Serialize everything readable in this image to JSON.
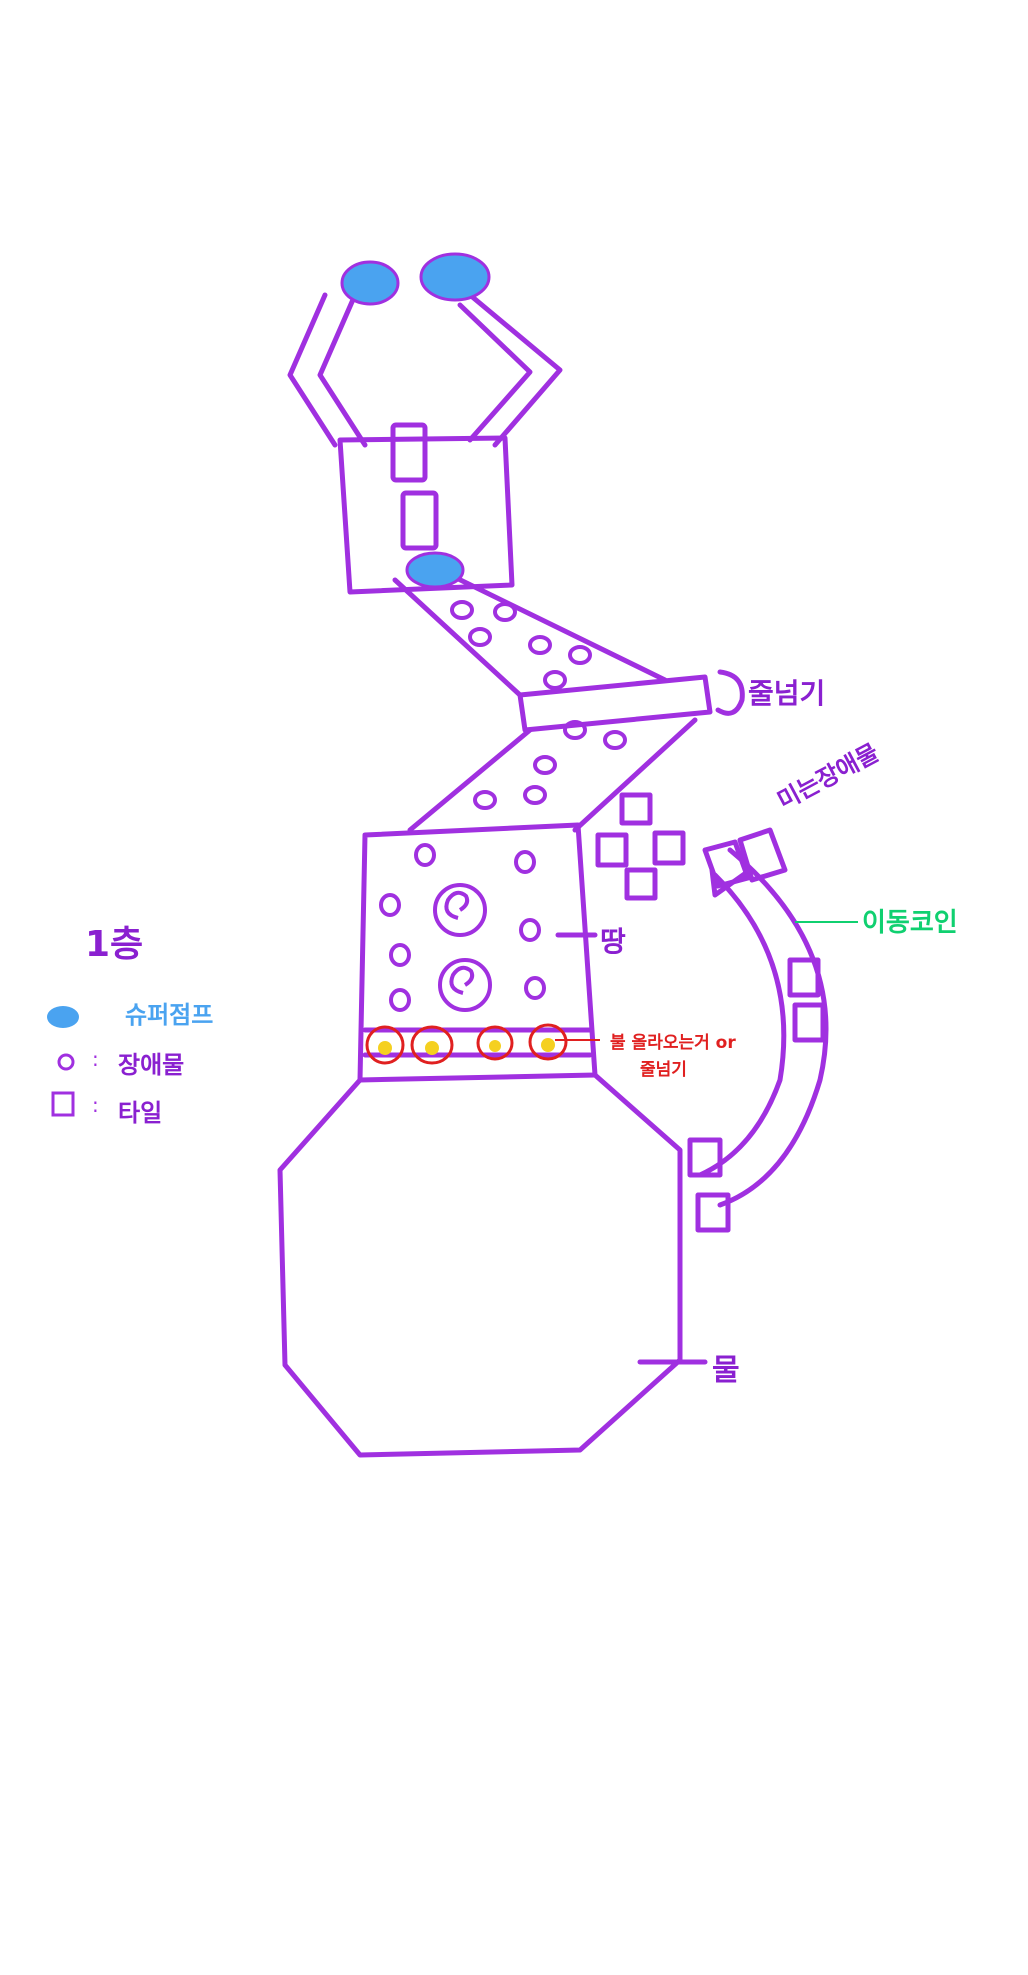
{
  "legend": {
    "title": "1층",
    "items": [
      {
        "symbol": "blue-blob",
        "label": "슈퍼점프"
      },
      {
        "symbol": "circle",
        "label": "장애물"
      },
      {
        "symbol": "square",
        "label": "타일"
      }
    ]
  },
  "annotations": {
    "jump_rope_top": "줄넘기",
    "moving_obstacle": "미는장애물",
    "moving_tile": "이동코인",
    "ground": "땅",
    "fire_line1": "불 올라오는거 or",
    "fire_line2": "줄넘기",
    "water": "물"
  },
  "colors": {
    "outline": "#a030e0",
    "label": "#8a20d0",
    "jump_pad": "#4aa3f0",
    "fire": "#e02020",
    "fire_core": "#f5d020",
    "moving_tile_label": "#10d070",
    "legend_blue": "#4aa3f0"
  }
}
